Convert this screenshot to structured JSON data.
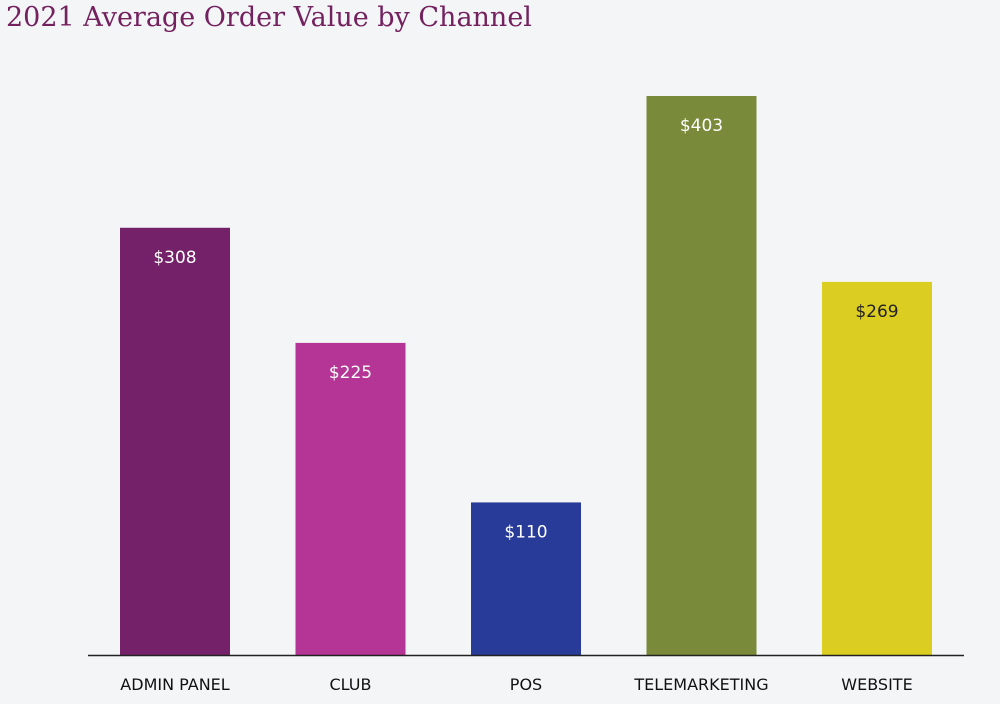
{
  "chart_data": {
    "type": "bar",
    "title": "2021 Average Order Value by Channel",
    "xlabel": "",
    "ylabel": "",
    "ylim": [
      0,
      403
    ],
    "grid": false,
    "categories": [
      "ADMIN PANEL",
      "CLUB",
      "POS",
      "TELEMARKETING",
      "WEBSITE"
    ],
    "values": [
      308,
      225,
      110,
      403,
      269
    ],
    "data_labels": [
      "$308",
      "$225",
      "$110",
      "$403",
      "$269"
    ],
    "colors": [
      "#74216a",
      "#b53596",
      "#283b99",
      "#798b3a",
      "#dccd23"
    ],
    "label_colors": [
      "#ffffff",
      "#ffffff",
      "#ffffff",
      "#ffffff",
      "#222222"
    ]
  }
}
